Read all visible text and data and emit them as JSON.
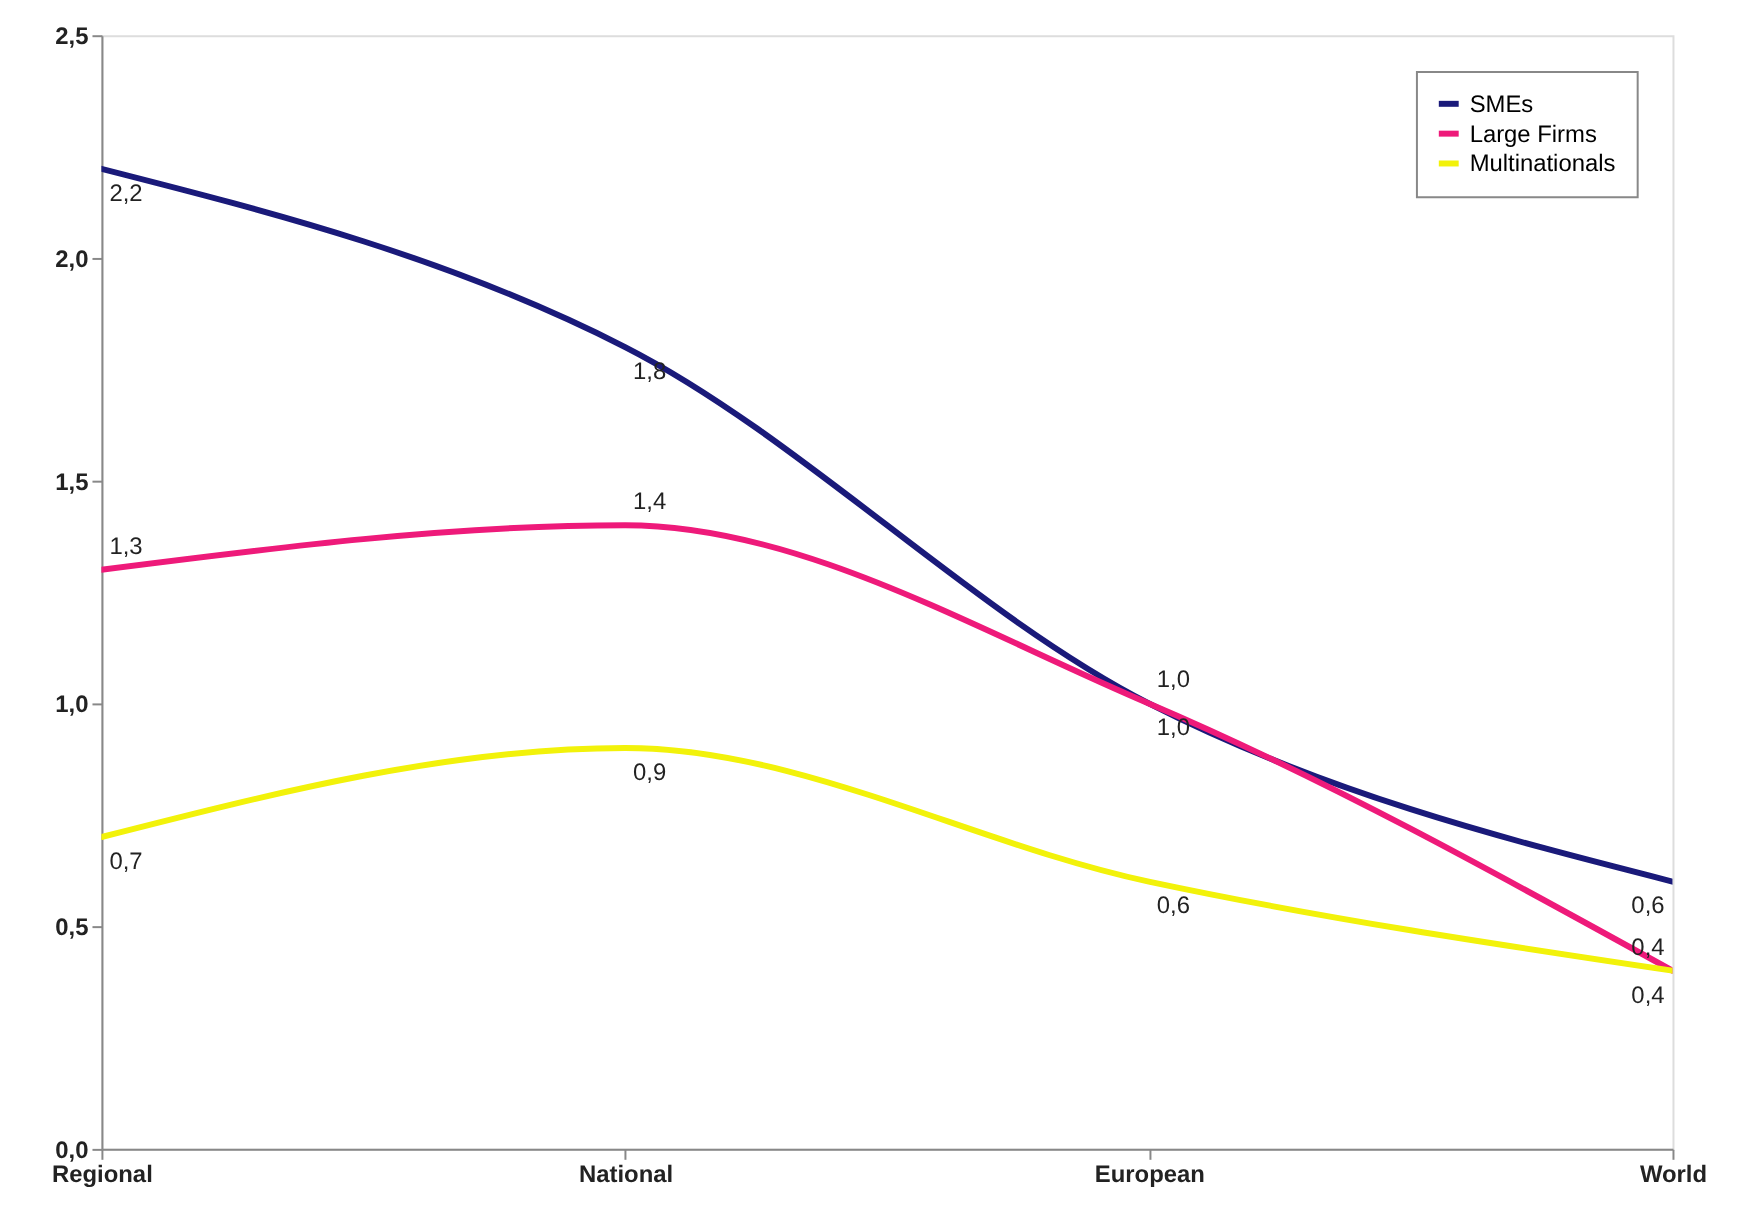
{
  "chart_data": {
    "type": "line",
    "categories": [
      "Regional",
      "National",
      "European",
      "World"
    ],
    "series": [
      {
        "name": "SMEs",
        "color": "#1a1a7a",
        "values": [
          2.2,
          1.8,
          1.0,
          0.6
        ],
        "value_labels": [
          "2,2",
          "1,8",
          "1,0",
          "0,6"
        ]
      },
      {
        "name": "Large Firms",
        "color": "#ee1a7a",
        "values": [
          1.3,
          1.4,
          1.0,
          0.4
        ],
        "value_labels": [
          "1,3",
          "1,4",
          "1,0",
          "0,4"
        ]
      },
      {
        "name": "Multinationals",
        "color": "#f2f20a",
        "values": [
          0.7,
          0.9,
          0.6,
          0.4
        ],
        "value_labels": [
          "0,7",
          "0,9",
          "0,6",
          "0,4"
        ]
      }
    ],
    "ylim": [
      0,
      2.5
    ],
    "yticks": [
      {
        "value": 0,
        "label": "0,0"
      },
      {
        "value": 0.5,
        "label": "0,5"
      },
      {
        "value": 1,
        "label": "1,0"
      },
      {
        "value": 1.5,
        "label": "1,5"
      },
      {
        "value": 2,
        "label": "2,0"
      },
      {
        "value": 2.5,
        "label": "2,5"
      }
    ],
    "grid": false,
    "legend": "top right",
    "marker": "none",
    "line_style": "solid"
  }
}
